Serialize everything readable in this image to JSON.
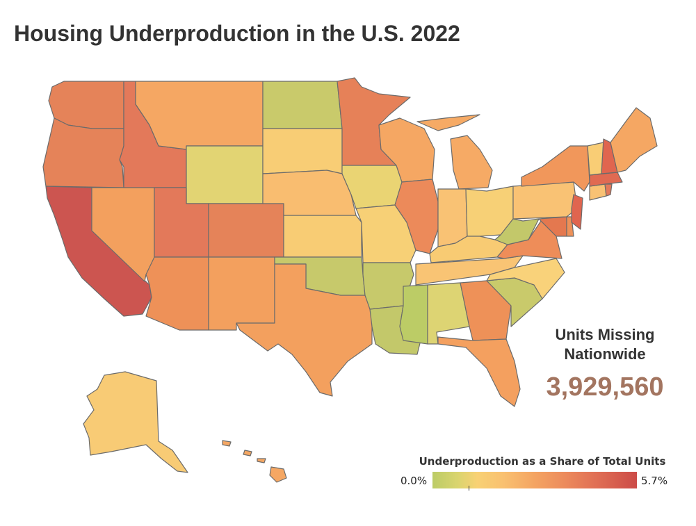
{
  "title": "Housing Underproduction in the U.S. 2022",
  "summary": {
    "label_line1": "Units Missing",
    "label_line2": "Nationwide",
    "value": "3,929,560"
  },
  "legend": {
    "title": "Underproduction as a Share of Total Units",
    "min_label": "0.0%",
    "max_label": "5.7%"
  },
  "colors": {
    "low": "#bccc66",
    "mid": "#f9c070",
    "high": "#cc4b47",
    "summary_value": "#a37560",
    "border": "#6b6b6b"
  }
}
